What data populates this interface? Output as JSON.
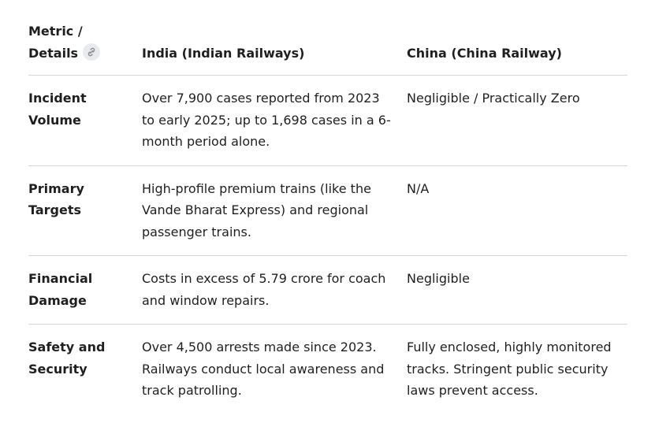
{
  "table": {
    "header": [
      "Metric / Details",
      "India (Indian Railways)",
      "China (China Railway)"
    ],
    "rows": [
      [
        "Incident Volume",
        "Over 7,900 cases reported from 2023 to early 2025; up to 1,698 cases in a 6-month period alone.",
        "Negligible / Practically Zero"
      ],
      [
        "Primary Targets",
        "High-profile premium trains (like the Vande Bharat Express) and regional passenger trains.",
        "N/A"
      ],
      [
        "Financial Damage",
        "Costs in excess of  5.79 crore for coach and window repairs.",
        "Negligible"
      ],
      [
        "Safety and Security",
        "Over 4,500 arrests made since 2023. Railways conduct local awareness and track patrolling.",
        "Fully enclosed, highly monitored tracks. Stringent public security laws prevent access."
      ]
    ]
  }
}
